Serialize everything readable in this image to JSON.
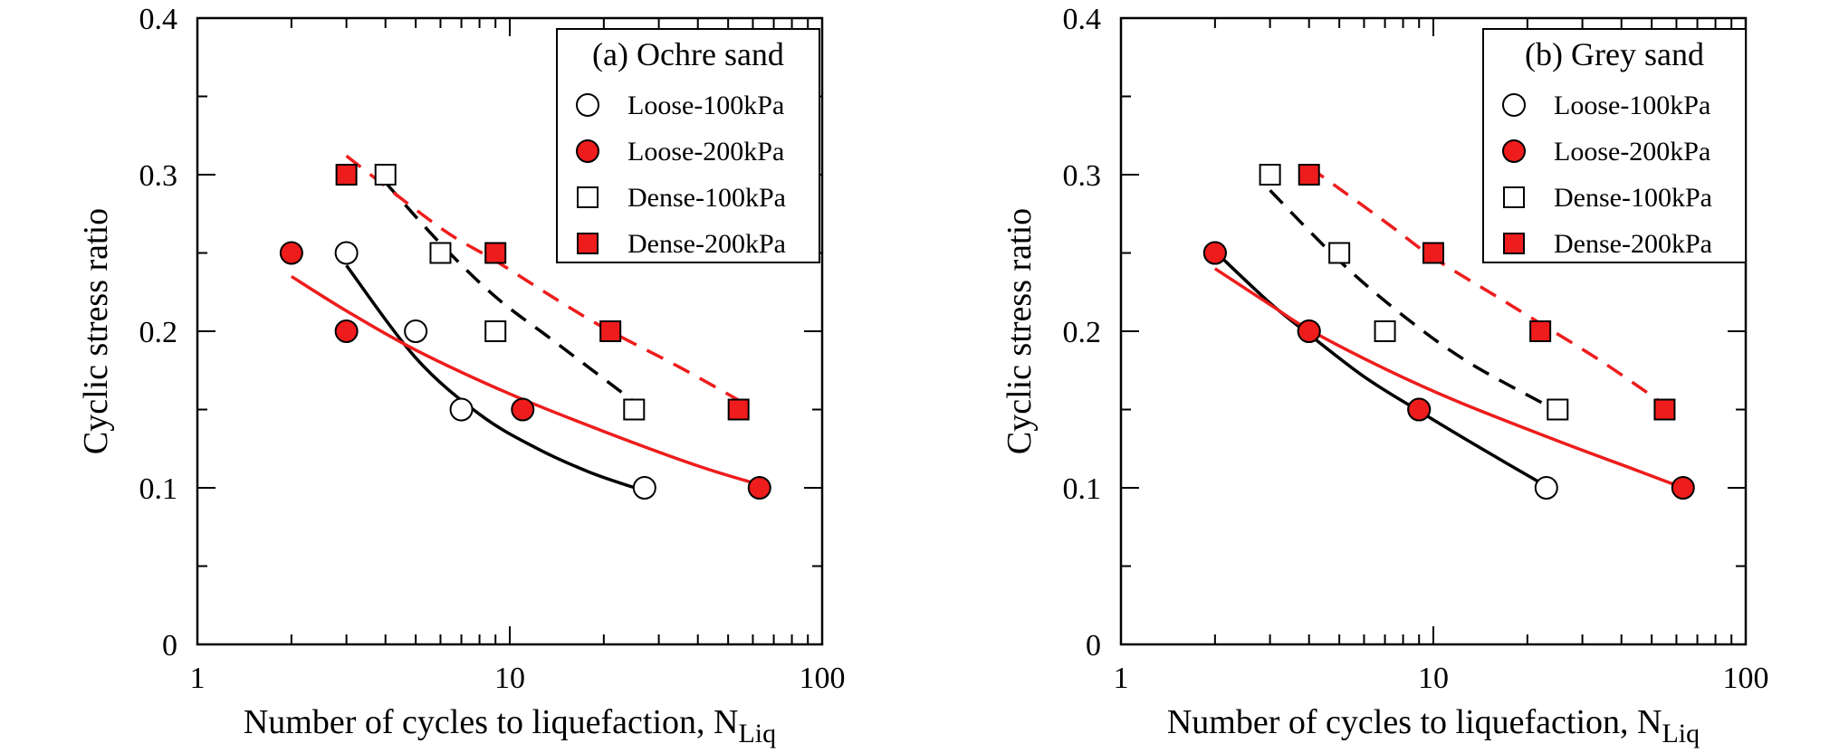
{
  "chart_data": [
    {
      "type": "scatter",
      "title": "(a) Ochre sand",
      "xlabel": "Number of cycles to liquefaction, N",
      "xlabel_subscript": "Liq",
      "ylabel": "Cyclic stress ratio",
      "xscale": "log",
      "xlim": [
        1,
        100
      ],
      "ylim": [
        0,
        0.4
      ],
      "x_ticks": [
        "1",
        "10",
        "100"
      ],
      "y_ticks": [
        "0",
        "0.1",
        "0.2",
        "0.3",
        "0.4"
      ],
      "legend_position": "top-right",
      "series": [
        {
          "name": "Loose-100kPa",
          "marker": "circle",
          "filled": false,
          "color": "#000000",
          "points": [
            [
              3,
              0.25
            ],
            [
              5,
              0.2
            ],
            [
              7,
              0.15
            ],
            [
              27,
              0.1
            ]
          ],
          "fit": {
            "dash": false,
            "color": "#000000",
            "points": [
              [
                3,
                0.242
              ],
              [
                5,
                0.183
              ],
              [
                8,
                0.147
              ],
              [
                12,
                0.126
              ],
              [
                18,
                0.11
              ],
              [
                27,
                0.098
              ]
            ]
          }
        },
        {
          "name": "Loose-200kPa",
          "marker": "circle",
          "filled": true,
          "color": "#ee1c1c",
          "points": [
            [
              2,
              0.25
            ],
            [
              3,
              0.2
            ],
            [
              11,
              0.15
            ],
            [
              63,
              0.1
            ]
          ],
          "fit": {
            "dash": false,
            "color": "#ee1c1c",
            "points": [
              [
                2,
                0.235
              ],
              [
                3,
                0.213
              ],
              [
                5,
                0.188
              ],
              [
                10,
                0.16
              ],
              [
                20,
                0.136
              ],
              [
                40,
                0.114
              ],
              [
                63,
                0.102
              ]
            ]
          }
        },
        {
          "name": "Dense-100kPa",
          "marker": "square",
          "filled": false,
          "color": "#000000",
          "points": [
            [
              4,
              0.3
            ],
            [
              6,
              0.25
            ],
            [
              9,
              0.2
            ],
            [
              25,
              0.15
            ]
          ],
          "fit": {
            "dash": true,
            "color": "#000000",
            "points": [
              [
                4,
                0.295
              ],
              [
                6,
                0.256
              ],
              [
                9,
                0.222
              ],
              [
                14,
                0.193
              ],
              [
                25,
                0.155
              ]
            ]
          }
        },
        {
          "name": "Dense-200kPa",
          "marker": "square",
          "filled": true,
          "color": "#ee1c1c",
          "points": [
            [
              3,
              0.3
            ],
            [
              9,
              0.25
            ],
            [
              21,
              0.2
            ],
            [
              54,
              0.15
            ]
          ],
          "fit": {
            "dash": true,
            "color": "#ee1c1c",
            "points": [
              [
                3,
                0.312
              ],
              [
                6,
                0.266
              ],
              [
                9,
                0.245
              ],
              [
                15,
                0.217
              ],
              [
                21,
                0.2
              ],
              [
                35,
                0.177
              ],
              [
                54,
                0.156
              ]
            ]
          }
        }
      ]
    },
    {
      "type": "scatter",
      "title": "(b) Grey sand",
      "xlabel": "Number of cycles to liquefaction, N",
      "xlabel_subscript": "Liq",
      "ylabel": "Cyclic stress ratio",
      "xscale": "log",
      "xlim": [
        1,
        100
      ],
      "ylim": [
        0,
        0.4
      ],
      "x_ticks": [
        "1",
        "10",
        "100"
      ],
      "y_ticks": [
        "0",
        "0.1",
        "0.2",
        "0.3",
        "0.4"
      ],
      "legend_position": "top-right",
      "series": [
        {
          "name": "Loose-100kPa",
          "marker": "circle",
          "filled": false,
          "color": "#000000",
          "points": [
            [
              2,
              0.25
            ],
            [
              4,
              0.2
            ],
            [
              9,
              0.15
            ],
            [
              23,
              0.1
            ]
          ],
          "fit": {
            "dash": false,
            "color": "#000000",
            "points": [
              [
                2,
                0.251
              ],
              [
                3,
                0.218
              ],
              [
                4,
                0.198
              ],
              [
                6,
                0.171
              ],
              [
                9,
                0.149
              ],
              [
                14,
                0.126
              ],
              [
                23,
                0.101
              ]
            ]
          }
        },
        {
          "name": "Loose-200kPa",
          "marker": "circle",
          "filled": true,
          "color": "#ee1c1c",
          "points": [
            [
              2,
              0.25
            ],
            [
              4,
              0.2
            ],
            [
              9,
              0.15
            ],
            [
              63,
              0.1
            ]
          ],
          "fit": {
            "dash": false,
            "color": "#ee1c1c",
            "points": [
              [
                2,
                0.24
              ],
              [
                3,
                0.217
              ],
              [
                4,
                0.201
              ],
              [
                7,
                0.176
              ],
              [
                12,
                0.155
              ],
              [
                25,
                0.13
              ],
              [
                45,
                0.111
              ],
              [
                63,
                0.1
              ]
            ]
          }
        },
        {
          "name": "Dense-100kPa",
          "marker": "square",
          "filled": false,
          "color": "#000000",
          "points": [
            [
              3,
              0.3
            ],
            [
              5,
              0.25
            ],
            [
              7,
              0.2
            ],
            [
              25,
              0.15
            ]
          ],
          "fit": {
            "dash": true,
            "color": "#000000",
            "points": [
              [
                3,
                0.29
              ],
              [
                5,
                0.245
              ],
              [
                8,
                0.21
              ],
              [
                13,
                0.18
              ],
              [
                25,
                0.149
              ]
            ]
          }
        },
        {
          "name": "Dense-200kPa",
          "marker": "square",
          "filled": true,
          "color": "#ee1c1c",
          "points": [
            [
              4,
              0.3
            ],
            [
              10,
              0.25
            ],
            [
              22,
              0.2
            ],
            [
              55,
              0.15
            ]
          ],
          "fit": {
            "dash": true,
            "color": "#ee1c1c",
            "points": [
              [
                4,
                0.305
              ],
              [
                7,
                0.27
              ],
              [
                10,
                0.247
              ],
              [
                16,
                0.222
              ],
              [
                22,
                0.205
              ],
              [
                35,
                0.18
              ],
              [
                55,
                0.153
              ]
            ]
          }
        }
      ]
    }
  ]
}
